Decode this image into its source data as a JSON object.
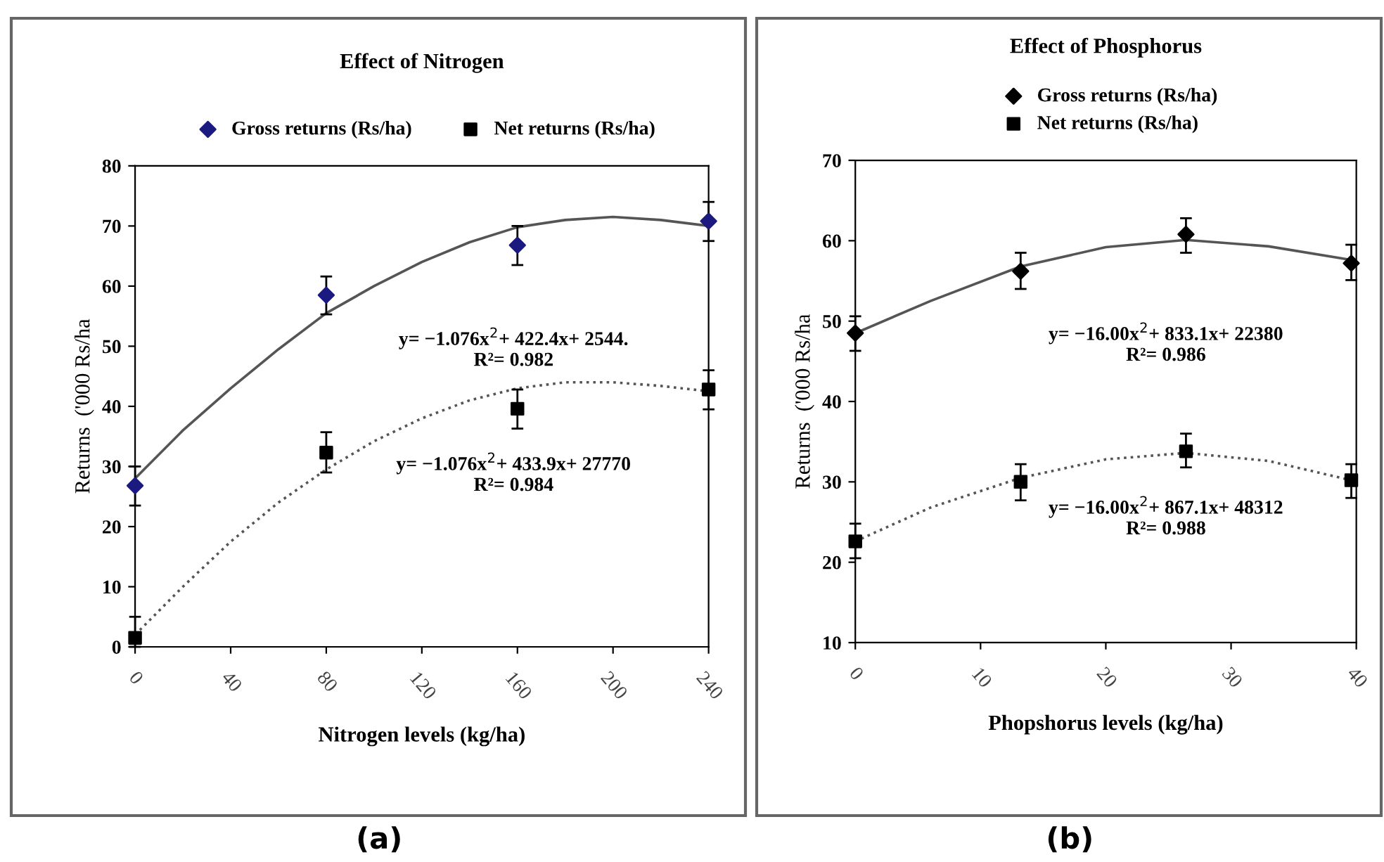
{
  "chart_data": [
    {
      "type": "scatter",
      "title": "Effect of Nitrogen",
      "xlabel": "Nitrogen levels (kg/ha)",
      "ylabel": "Returns  ('000 Rs/ha",
      "xlim": [
        0,
        240
      ],
      "xticks": [
        0,
        40,
        80,
        120,
        160,
        200,
        240
      ],
      "ylim": [
        0,
        80
      ],
      "yticks": [
        0,
        10,
        20,
        30,
        40,
        50,
        60,
        70,
        80
      ],
      "grid": false,
      "legend": "top",
      "x": [
        0,
        80,
        160,
        240
      ],
      "series": [
        {
          "name": "Gross returns (Rs/ha)",
          "type": "scatter",
          "marker": "diamond",
          "color": "#1a1a80",
          "values": [
            26.8,
            58.5,
            66.8,
            70.8
          ],
          "errors": [
            [
              23.5,
              30
            ],
            [
              55.3,
              61.6
            ],
            [
              63.5,
              70
            ],
            [
              67.5,
              74
            ]
          ]
        },
        {
          "name": "Net returns (Rs/ha)",
          "type": "scatter",
          "marker": "square",
          "color": "#000000",
          "values": [
            1.5,
            32.3,
            39.6,
            42.8
          ],
          "errors": [
            [
              0,
              5
            ],
            [
              29,
              35.7
            ],
            [
              36.3,
              42.8
            ],
            [
              39.5,
              46
            ]
          ]
        },
        {
          "type": "line",
          "line_style": "solid",
          "color": "#555555",
          "x": [
            0,
            20,
            40,
            60,
            80,
            100,
            120,
            140,
            160,
            180,
            200,
            220,
            240
          ],
          "values": [
            28,
            36,
            43,
            49.5,
            55.5,
            60,
            64,
            67.3,
            69.8,
            71,
            71.5,
            71,
            70
          ]
        },
        {
          "type": "line",
          "line_style": "dotted",
          "color": "#555555",
          "x": [
            0,
            20,
            40,
            60,
            80,
            100,
            120,
            140,
            160,
            180,
            200,
            220,
            240
          ],
          "values": [
            2,
            10,
            17.5,
            24,
            29.5,
            34.2,
            38,
            41,
            43,
            44,
            44,
            43.4,
            42.5
          ]
        }
      ],
      "annotations": [
        "y= −1.076x$^{2}$+ 422.4x+ 2544.\nR²= 0.982",
        "y= −1.076x$^{2}$+ 433.9x+ 27770\nR²= 0.984",
        "(a)"
      ]
    },
    {
      "type": "scatter",
      "title": "Effect of Phosphorus",
      "xlabel": "Phopshorus levels (kg/ha)",
      "ylabel": "Returns  ('000 Rs/ha",
      "xlim": [
        0,
        40
      ],
      "xticks": [
        0,
        10,
        20,
        30,
        40
      ],
      "ylim": [
        10,
        70
      ],
      "yticks": [
        10,
        20,
        30,
        40,
        50,
        60,
        70
      ],
      "grid": false,
      "legend": "top",
      "x": [
        0,
        13.2,
        26.4,
        39.6
      ],
      "series": [
        {
          "name": "Gross returns (Rs/ha)",
          "type": "scatter",
          "marker": "diamond",
          "color": "#000000",
          "values": [
            48.5,
            56.2,
            60.8,
            57.2
          ],
          "errors": [
            [
              46.3,
              50.6
            ],
            [
              54,
              58.5
            ],
            [
              58.5,
              62.8
            ],
            [
              55.1,
              59.5
            ]
          ]
        },
        {
          "name": "Net returns (Rs/ha)",
          "type": "scatter",
          "marker": "square",
          "color": "#000000",
          "values": [
            22.6,
            30,
            33.8,
            30.2
          ],
          "errors": [
            [
              20.5,
              24.8
            ],
            [
              27.7,
              32.2
            ],
            [
              31.8,
              36
            ],
            [
              28,
              32.2
            ]
          ]
        },
        {
          "type": "line",
          "line_style": "solid",
          "color": "#555555",
          "x": [
            0,
            6,
            13.2,
            20,
            26.4,
            33,
            39.6
          ],
          "values": [
            48.5,
            52.5,
            56.8,
            59.2,
            60.1,
            59.3,
            57.6
          ]
        },
        {
          "type": "line",
          "line_style": "dotted",
          "color": "#555555",
          "x": [
            0,
            6,
            13.2,
            20,
            26.4,
            33,
            39.6
          ],
          "values": [
            22.6,
            26.8,
            30.5,
            32.8,
            33.6,
            32.6,
            30.2
          ]
        }
      ],
      "annotations": [
        "y= −16.00x$^{2}$+ 833.1x+ 22380\nR²= 0.986",
        "y= −16.00x$^{2}$+ 867.1x+ 48312\nR²= 0.988",
        "(b)"
      ]
    }
  ]
}
